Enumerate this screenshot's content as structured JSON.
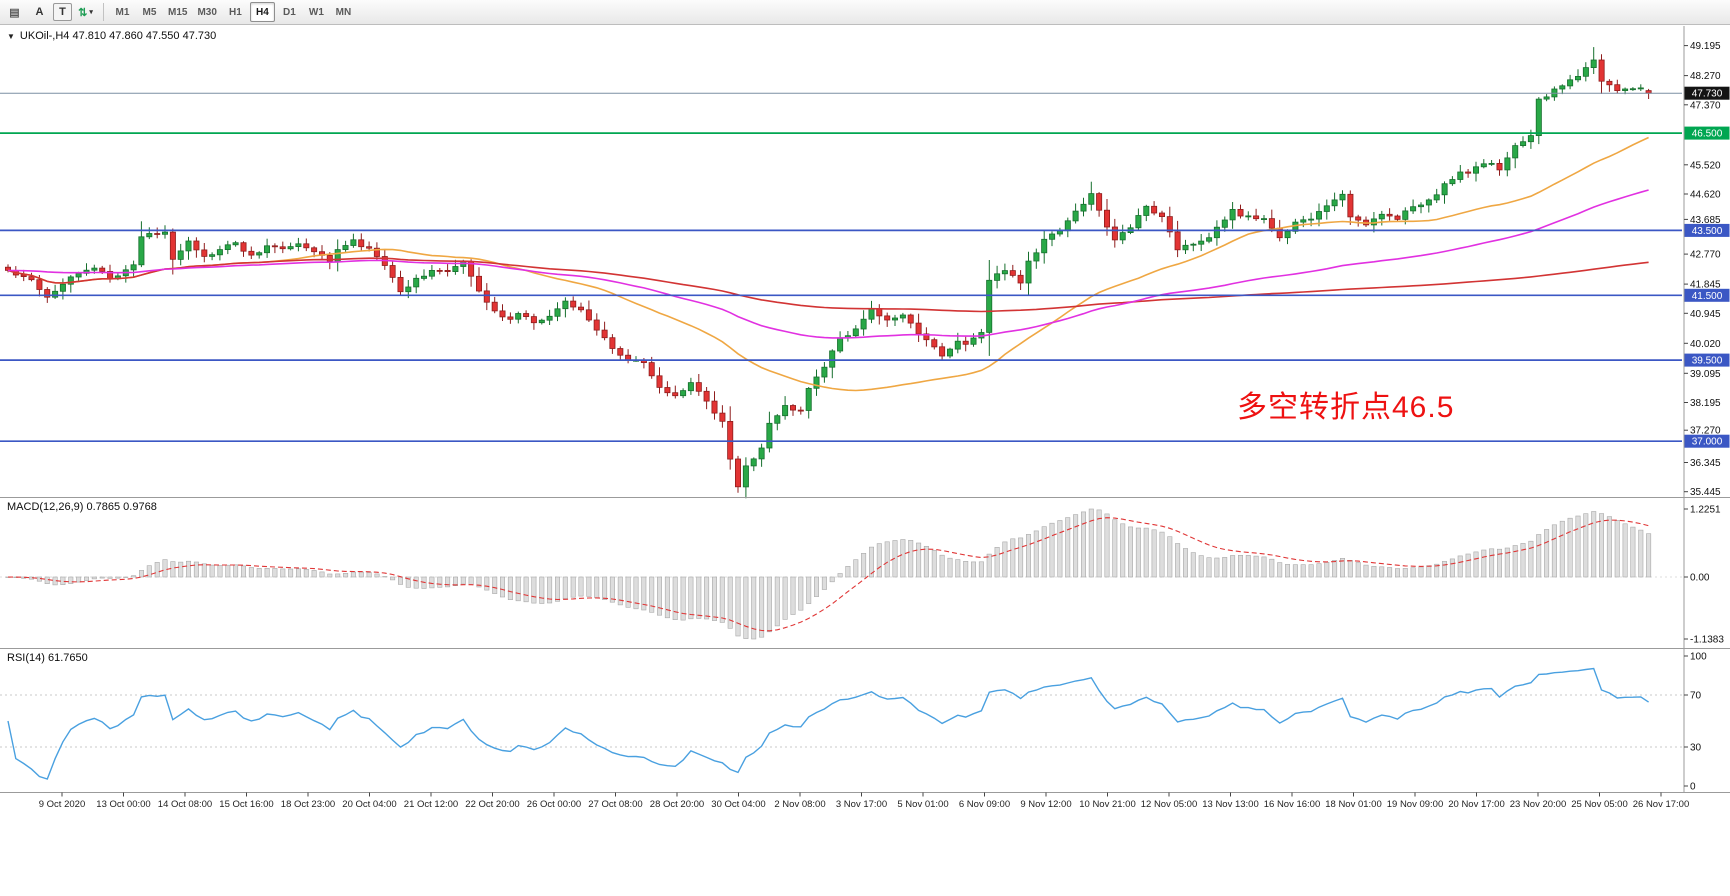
{
  "toolbar": {
    "tools": [
      {
        "name": "chart-grid-icon",
        "glyph": "▤",
        "color": "#5a5a5a"
      },
      {
        "name": "text-label-tool-icon",
        "glyph": "A",
        "color": "#333333"
      },
      {
        "name": "text-box-tool-icon",
        "glyph": "T",
        "boxed": true,
        "color": "#333333"
      },
      {
        "name": "arrows-tool-icon",
        "glyph": "⇅",
        "dropdown": true,
        "color": "#1f9d55"
      }
    ],
    "timeframes": [
      {
        "label": "M1"
      },
      {
        "label": "M5"
      },
      {
        "label": "M15"
      },
      {
        "label": "M30"
      },
      {
        "label": "H1"
      },
      {
        "label": "H4",
        "active": true
      },
      {
        "label": "D1"
      },
      {
        "label": "W1"
      },
      {
        "label": "MN"
      }
    ]
  },
  "chart": {
    "title_text": "UKOil-,H4 47.810 47.860 47.550 47.730",
    "symbol": "UKOil-",
    "timeframe": "H4",
    "annotation": {
      "text": "多空转折点46.5",
      "color": "#ee1111"
    },
    "current_price": {
      "value": 47.73,
      "label": "47.730",
      "badge_bg": "#141414",
      "line_color": "#7b8fa3"
    },
    "hlines": [
      {
        "price": 46.5,
        "label": "46.500",
        "color": "#00a651"
      },
      {
        "price": 43.5,
        "label": "43.500",
        "color": "#3b57c4"
      },
      {
        "price": 41.5,
        "label": "41.500",
        "color": "#3b57c4"
      },
      {
        "price": 39.5,
        "label": "39.500",
        "color": "#3b57c4"
      },
      {
        "price": 37.0,
        "label": "37.000",
        "color": "#3b57c4"
      }
    ],
    "price_axis_ticks": [
      "49.195",
      "48.270",
      "47.370",
      "45.520",
      "44.620",
      "43.685",
      "42.770",
      "41.845",
      "40.945",
      "40.020",
      "39.095",
      "38.195",
      "37.270",
      "36.345",
      "35.445"
    ]
  },
  "indicators": {
    "macd": {
      "label": "MACD(12,26,9) 0.7865 0.9768",
      "params": [
        12,
        26,
        9
      ],
      "value": 0.7865,
      "signal": 0.9768,
      "axis": [
        "1.2251",
        "0.00",
        "-1.1383"
      ]
    },
    "rsi": {
      "label": "RSI(14) 61.7650",
      "period": 14,
      "value": 61.765,
      "axis": [
        "100",
        "70",
        "30",
        "0"
      ],
      "levels": [
        70,
        30
      ]
    }
  },
  "time_axis": {
    "labels": [
      "9 Oct 2020",
      "13 Oct 00:00",
      "14 Oct 08:00",
      "15 Oct 16:00",
      "18 Oct 23:00",
      "20 Oct 04:00",
      "21 Oct 12:00",
      "22 Oct 20:00",
      "26 Oct 00:00",
      "27 Oct 08:00",
      "28 Oct 20:00",
      "30 Oct 04:00",
      "2 Nov 08:00",
      "3 Nov 17:00",
      "5 Nov 01:00",
      "6 Nov 09:00",
      "9 Nov 12:00",
      "10 Nov 21:00",
      "12 Nov 05:00",
      "13 Nov 13:00",
      "16 Nov 16:00",
      "18 Nov 01:00",
      "19 Nov 09:00",
      "20 Nov 17:00",
      "23 Nov 20:00",
      "25 Nov 05:00",
      "26 Nov 17:00"
    ]
  },
  "chart_data": {
    "type": "candlestick",
    "symbol": "UKOil-",
    "timeframe": "H4",
    "ohlc_last": {
      "open": 47.81,
      "high": 47.86,
      "low": 47.55,
      "close": 47.73
    },
    "candle_count": 210,
    "ylim": [
      35.445,
      49.195
    ],
    "price_path": [
      [
        0,
        42.25
      ],
      [
        3,
        42.0
      ],
      [
        5,
        41.45
      ],
      [
        8,
        42.1
      ],
      [
        11,
        42.35
      ],
      [
        13,
        42.0
      ],
      [
        16,
        42.45
      ],
      [
        17,
        43.3
      ],
      [
        20,
        43.45
      ],
      [
        21,
        42.65
      ],
      [
        23,
        43.2
      ],
      [
        25,
        42.65
      ],
      [
        27,
        42.9
      ],
      [
        29,
        43.1
      ],
      [
        31,
        42.7
      ],
      [
        33,
        43.0
      ],
      [
        35,
        42.95
      ],
      [
        37,
        43.1
      ],
      [
        39,
        42.8
      ],
      [
        41,
        42.6
      ],
      [
        42,
        42.9
      ],
      [
        44,
        43.15
      ],
      [
        46,
        42.9
      ],
      [
        48,
        42.45
      ],
      [
        50,
        41.6
      ],
      [
        52,
        42.0
      ],
      [
        54,
        42.3
      ],
      [
        56,
        42.2
      ],
      [
        58,
        42.5
      ],
      [
        60,
        41.6
      ],
      [
        62,
        41.05
      ],
      [
        64,
        40.7
      ],
      [
        65,
        41.0
      ],
      [
        67,
        40.6
      ],
      [
        69,
        40.9
      ],
      [
        71,
        41.3
      ],
      [
        73,
        41.1
      ],
      [
        75,
        40.4
      ],
      [
        77,
        39.9
      ],
      [
        79,
        39.5
      ],
      [
        81,
        39.4
      ],
      [
        83,
        38.6
      ],
      [
        85,
        38.4
      ],
      [
        87,
        38.8
      ],
      [
        89,
        38.2
      ],
      [
        91,
        37.6
      ],
      [
        92,
        36.4
      ],
      [
        93,
        35.6
      ],
      [
        94,
        36.2
      ],
      [
        96,
        36.8
      ],
      [
        97,
        37.5
      ],
      [
        99,
        38.1
      ],
      [
        101,
        37.9
      ],
      [
        102,
        38.6
      ],
      [
        104,
        39.3
      ],
      [
        106,
        40.2
      ],
      [
        108,
        40.4
      ],
      [
        110,
        41.1
      ],
      [
        112,
        40.7
      ],
      [
        114,
        40.9
      ],
      [
        116,
        40.3
      ],
      [
        118,
        39.9
      ],
      [
        119,
        39.6
      ],
      [
        121,
        40.1
      ],
      [
        122,
        40.0
      ],
      [
        124,
        40.3
      ],
      [
        125,
        42.0
      ],
      [
        127,
        42.3
      ],
      [
        129,
        41.9
      ],
      [
        130,
        42.5
      ],
      [
        132,
        43.2
      ],
      [
        134,
        43.5
      ],
      [
        136,
        44.1
      ],
      [
        138,
        44.6
      ],
      [
        139,
        44.1
      ],
      [
        141,
        43.2
      ],
      [
        143,
        43.6
      ],
      [
        145,
        44.3
      ],
      [
        147,
        43.9
      ],
      [
        149,
        42.95
      ],
      [
        151,
        43.1
      ],
      [
        153,
        43.3
      ],
      [
        155,
        43.8
      ],
      [
        156,
        44.1
      ],
      [
        158,
        43.9
      ],
      [
        160,
        43.8
      ],
      [
        162,
        43.3
      ],
      [
        164,
        43.7
      ],
      [
        166,
        43.9
      ],
      [
        168,
        44.2
      ],
      [
        170,
        44.65
      ],
      [
        171,
        43.9
      ],
      [
        173,
        43.7
      ],
      [
        175,
        44.0
      ],
      [
        177,
        43.9
      ],
      [
        179,
        44.2
      ],
      [
        181,
        44.4
      ],
      [
        183,
        44.9
      ],
      [
        185,
        45.3
      ],
      [
        186,
        45.2
      ],
      [
        188,
        45.6
      ],
      [
        190,
        45.4
      ],
      [
        192,
        46.1
      ],
      [
        194,
        46.4
      ],
      [
        195,
        47.5
      ],
      [
        197,
        47.8
      ],
      [
        199,
        48.2
      ],
      [
        200,
        48.3
      ],
      [
        202,
        48.7
      ],
      [
        203,
        48.1
      ],
      [
        205,
        47.8
      ],
      [
        206,
        47.9
      ],
      [
        208,
        47.85
      ],
      [
        209,
        47.73
      ]
    ],
    "extremes": [
      {
        "i": 202,
        "high": 49.15
      },
      {
        "i": 138,
        "high": 45.0
      },
      {
        "i": 93,
        "low": 35.45
      }
    ],
    "moving_averages": [
      {
        "name": "ma-fast",
        "type": "sma",
        "period": 34,
        "color": "#efa743"
      },
      {
        "name": "ma-mid",
        "type": "ema",
        "period": 90,
        "color": "#e131e1"
      },
      {
        "name": "ma-slow",
        "type": "sma",
        "period": 200,
        "color": "#d23434"
      }
    ],
    "colors": {
      "up": "#29a847",
      "up_stroke": "#166f2d",
      "down": "#e23434",
      "down_stroke": "#8f1d1d"
    },
    "macd_range": {
      "max": 1.2251,
      "min": -1.1383
    },
    "rsi_range": [
      0,
      100
    ]
  }
}
